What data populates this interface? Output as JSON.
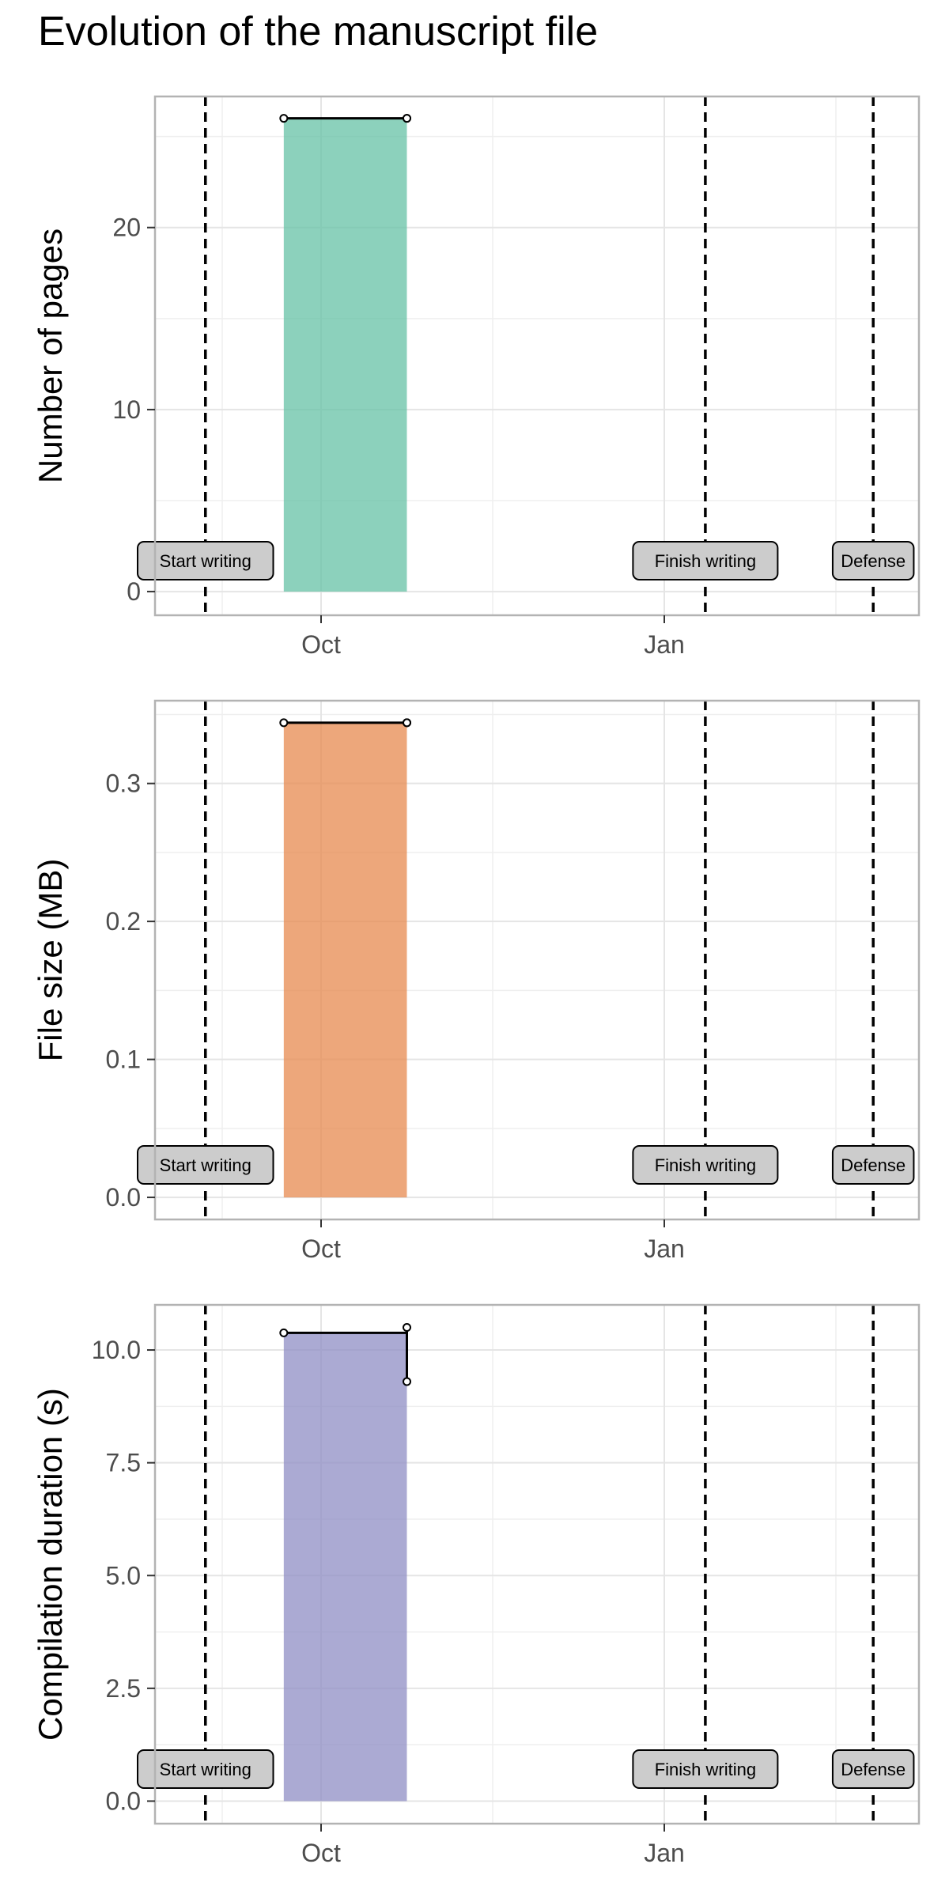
{
  "title": "Evolution of the manuscript file",
  "colors": {
    "pages_fill": "#66c2a5",
    "size_fill": "#e78a4f",
    "duration_fill": "#8f8dc4",
    "line": "#000000",
    "panel_border": "#b3b3b3",
    "grid": "#e5e5e5",
    "label_fill": "#cccccc"
  },
  "chart_data": [
    {
      "type": "area",
      "ylabel": "Number of pages",
      "x_ticks": [
        "Oct",
        "Jan"
      ],
      "y_ticks": [
        "0",
        "10",
        "20"
      ],
      "ylim": [
        -1.3,
        27.2
      ],
      "series": [
        {
          "x": [
            "Sep 21",
            "Oct 24",
            "Oct 24"
          ],
          "y": [
            26,
            26,
            26
          ]
        }
      ],
      "events": [
        {
          "label": "Start writing",
          "date": "Aug 31"
        },
        {
          "label": "Finish writing",
          "date": "Jan 12"
        },
        {
          "label": "Defense",
          "date": "Feb 26"
        }
      ]
    },
    {
      "type": "area",
      "ylabel": "File size (MB)",
      "x_ticks": [
        "Oct",
        "Jan"
      ],
      "y_ticks": [
        "0.0",
        "0.1",
        "0.2",
        "0.3"
      ],
      "ylim": [
        -0.016,
        0.36
      ],
      "series": [
        {
          "x": [
            "Sep 21",
            "Oct 24",
            "Oct 24"
          ],
          "y": [
            0.344,
            0.344,
            0.344
          ]
        }
      ],
      "events": [
        {
          "label": "Start writing",
          "date": "Aug 31"
        },
        {
          "label": "Finish writing",
          "date": "Jan 12"
        },
        {
          "label": "Defense",
          "date": "Feb 26"
        }
      ]
    },
    {
      "type": "area",
      "ylabel": "Compilation duration (s)",
      "x_ticks": [
        "Oct",
        "Jan"
      ],
      "y_ticks": [
        "0.0",
        "2.5",
        "5.0",
        "7.5",
        "10.0"
      ],
      "ylim": [
        -0.5,
        11.0
      ],
      "series": [
        {
          "x": [
            "Sep 21",
            "Oct 24",
            "Oct 24"
          ],
          "y": [
            10.38,
            10.5,
            9.3
          ]
        }
      ],
      "events": [
        {
          "label": "Start writing",
          "date": "Aug 31"
        },
        {
          "label": "Finish writing",
          "date": "Jan 12"
        },
        {
          "label": "Defense",
          "date": "Feb 26"
        }
      ]
    }
  ]
}
